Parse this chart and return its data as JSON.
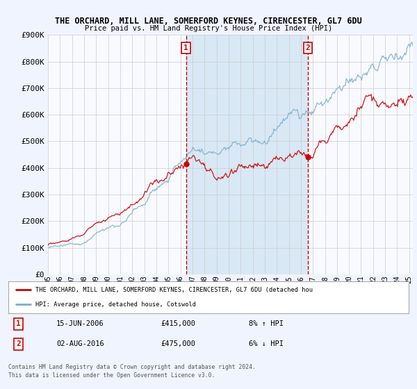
{
  "title1": "THE ORCHARD, MILL LANE, SOMERFORD KEYNES, CIRENCESTER, GL7 6DU",
  "title2": "Price paid vs. HM Land Registry's House Price Index (HPI)",
  "legend_line1": "THE ORCHARD, MILL LANE, SOMERFORD KEYNES, CIRENCESTER, GL7 6DU (detached hou",
  "legend_line2": "HPI: Average price, detached house, Cotswold",
  "annotation1_label": "1",
  "annotation1_date": "15-JUN-2006",
  "annotation1_price": "£415,000",
  "annotation1_hpi": "8% ↑ HPI",
  "annotation1_year": 2006.46,
  "annotation2_label": "2",
  "annotation2_date": "02-AUG-2016",
  "annotation2_price": "£475,000",
  "annotation2_hpi": "6% ↓ HPI",
  "annotation2_year": 2016.58,
  "footer1": "Contains HM Land Registry data © Crown copyright and database right 2024.",
  "footer2": "This data is licensed under the Open Government Licence v3.0.",
  "ylim": [
    0,
    900000
  ],
  "yticks": [
    0,
    100000,
    200000,
    300000,
    400000,
    500000,
    600000,
    700000,
    800000,
    900000
  ],
  "xlim_start": 1995,
  "xlim_end": 2025,
  "bg_color": "#f0f4ff",
  "plot_bg_color": "#f8faff",
  "highlight_color": "#d8e8f5",
  "red_color": "#cc0000",
  "blue_color": "#7aadcc",
  "vline_color": "#cc0000",
  "grid_color": "#cccccc"
}
